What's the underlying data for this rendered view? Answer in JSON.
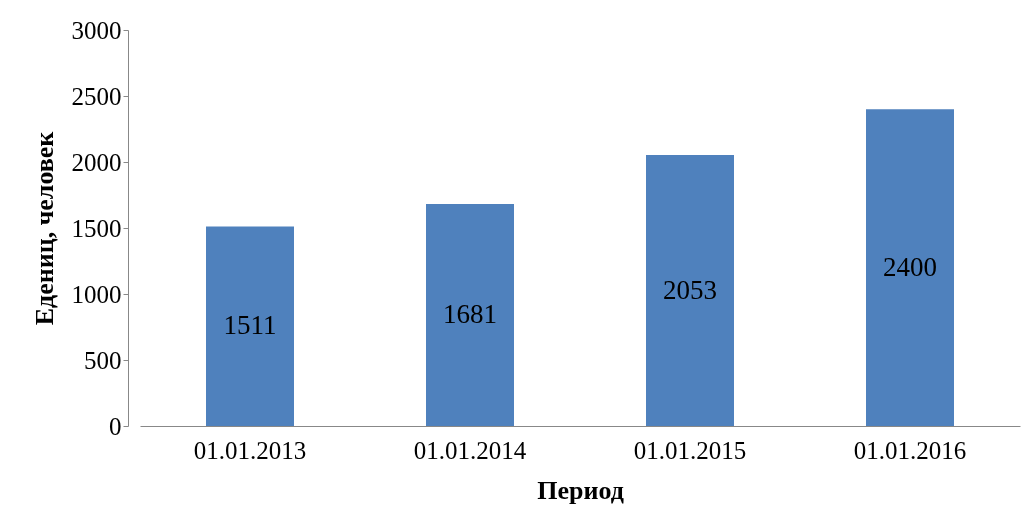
{
  "chart_data": {
    "type": "bar",
    "xlabel": "Период",
    "ylabel": "Едениц, человек",
    "categories": [
      "01.01.2013",
      "01.01.2014",
      "01.01.2015",
      "01.01.2016"
    ],
    "values": [
      1511,
      1681,
      2053,
      2400
    ],
    "color": "#4f81bd",
    "ylim": [
      0,
      3000
    ],
    "yticks": [
      0,
      500,
      1000,
      1500,
      2000,
      2500,
      3000
    ],
    "grid": false,
    "data_labels": true
  }
}
